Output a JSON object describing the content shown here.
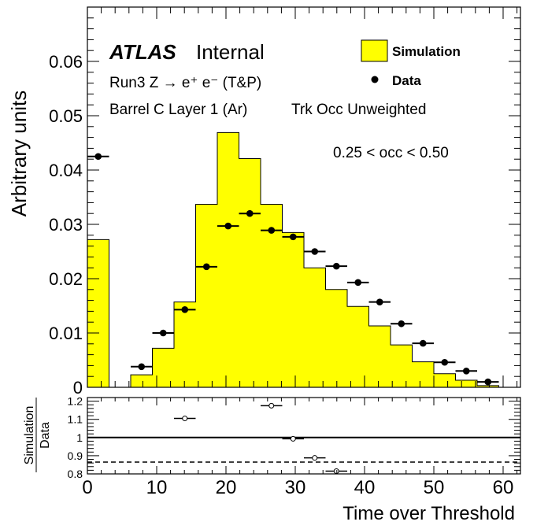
{
  "chart_data": {
    "type": "bar",
    "title": "",
    "xlabel": "Time over Threshold",
    "ylabel": "Arbitrary units",
    "xlim": [
      0,
      62.5
    ],
    "ylim": [
      0,
      0.07
    ],
    "x_ticks": [
      0,
      10,
      20,
      30,
      40,
      50,
      60
    ],
    "x_tick_labels": [
      "0",
      "10",
      "20",
      "30",
      "40",
      "50",
      "60"
    ],
    "y_ticks": [
      0,
      0.01,
      0.02,
      0.03,
      0.04,
      0.05,
      0.06
    ],
    "y_tick_labels": [
      "0",
      "0.01",
      "0.02",
      "0.03",
      "0.04",
      "0.05",
      "0.06"
    ],
    "bin_width": 3.125,
    "bin_edges": [
      0,
      3.125,
      6.25,
      9.375,
      12.5,
      15.625,
      18.75,
      21.875,
      25,
      28.125,
      31.25,
      34.375,
      37.5,
      40.625,
      43.75,
      46.875,
      50,
      53.125,
      56.25,
      59.375,
      62.5
    ],
    "series": [
      {
        "name": "Simulation",
        "style": "filled-histogram",
        "color": "#ffff00",
        "values": [
          0.0272,
          0.0,
          0.0023,
          0.0072,
          0.0157,
          0.0337,
          0.0469,
          0.0421,
          0.0337,
          0.0285,
          0.022,
          0.018,
          0.0149,
          0.0113,
          0.0078,
          0.0047,
          0.0025,
          0.0013,
          0.0003,
          0.0
        ]
      },
      {
        "name": "Data",
        "style": "markers-with-xerr",
        "color": "#000000",
        "values": [
          0.0425,
          null,
          0.0038,
          0.01,
          0.0143,
          0.0222,
          0.0297,
          0.032,
          0.0289,
          0.0277,
          0.025,
          0.0223,
          0.0193,
          0.0157,
          0.0117,
          0.0081,
          0.0046,
          0.003,
          0.001,
          null
        ]
      }
    ],
    "legend_position": "top-right",
    "annotations": {
      "atlas": "ATLAS",
      "internal": "Internal",
      "line1": "Run3 Z → e⁺ e⁻ (T&P)",
      "line2_a": "Barrel C Layer 1 (Ar)",
      "line2_b": "Trk Occ Unweighted",
      "occ_range": "0.25 < occ < 0.50"
    },
    "ratio_panel": {
      "ylabel_numerator": "Simulation",
      "ylabel_denominator": "Data",
      "ylim": [
        0.8,
        1.22
      ],
      "y_ticks": [
        0.8,
        0.9,
        1.0,
        1.1,
        1.2
      ],
      "y_tick_labels": [
        "0.8",
        "0.9",
        "1",
        "1.1",
        "1.2"
      ],
      "reference_line": 1.0,
      "dashed_line": 0.865,
      "points": [
        {
          "x": 14.06,
          "y": 1.105
        },
        {
          "x": 26.56,
          "y": 1.175
        },
        {
          "x": 29.69,
          "y": 0.993
        },
        {
          "x": 32.81,
          "y": 0.888
        },
        {
          "x": 35.94,
          "y": 0.815
        }
      ]
    }
  }
}
